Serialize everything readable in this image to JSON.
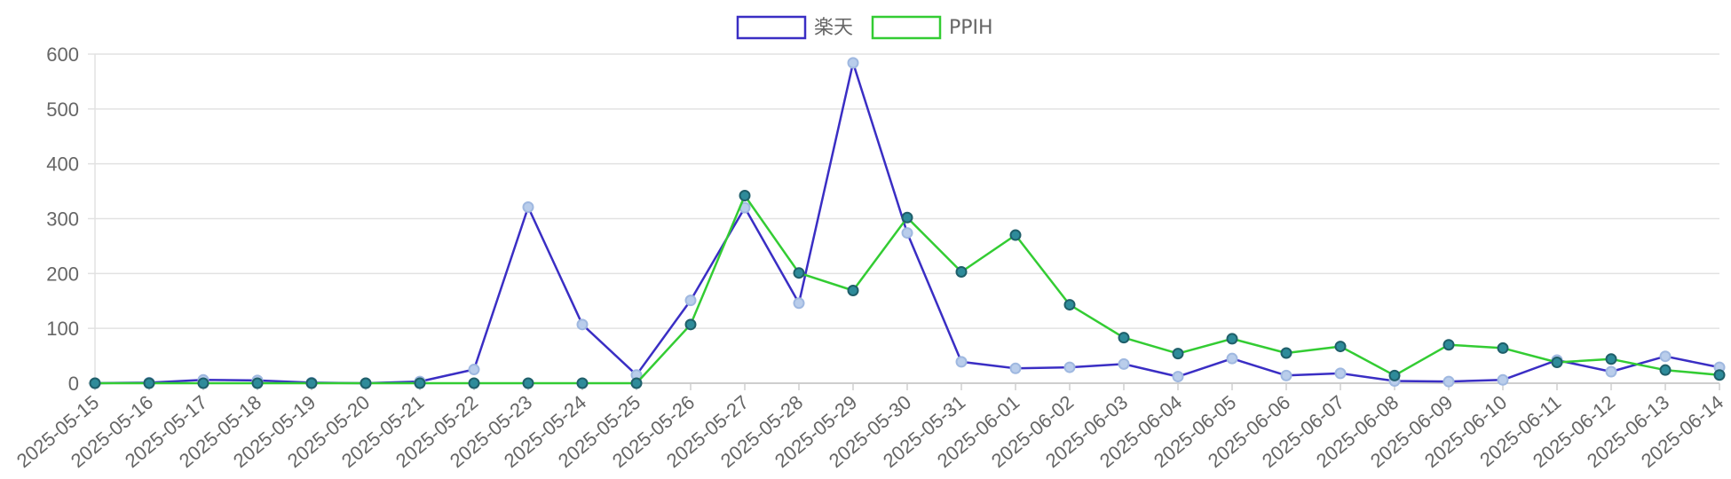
{
  "chart_data": {
    "type": "line",
    "x": [
      "2025-05-15",
      "2025-05-16",
      "2025-05-17",
      "2025-05-18",
      "2025-05-19",
      "2025-05-20",
      "2025-05-21",
      "2025-05-22",
      "2025-05-23",
      "2025-05-24",
      "2025-05-25",
      "2025-05-26",
      "2025-05-27",
      "2025-05-28",
      "2025-05-29",
      "2025-05-30",
      "2025-05-31",
      "2025-06-01",
      "2025-06-02",
      "2025-06-03",
      "2025-06-04",
      "2025-06-05",
      "2025-06-06",
      "2025-06-07",
      "2025-06-08",
      "2025-06-09",
      "2025-06-10",
      "2025-06-11",
      "2025-06-12",
      "2025-06-13",
      "2025-06-14"
    ],
    "series": [
      {
        "name": "楽天",
        "color": "#3a2ec4",
        "point_fill": "#b9cdeb",
        "values": [
          0,
          1,
          6,
          5,
          1,
          0,
          3,
          25,
          321,
          107,
          15,
          151,
          320,
          146,
          584,
          274,
          39,
          27,
          29,
          35,
          12,
          45,
          14,
          18,
          4,
          3,
          6,
          42,
          21,
          49,
          29
        ]
      },
      {
        "name": "PPIH",
        "color": "#33cc33",
        "point_fill": "#2e8b9a",
        "values": [
          0,
          0,
          0,
          0,
          0,
          0,
          0,
          0,
          0,
          0,
          0,
          107,
          342,
          201,
          169,
          302,
          203,
          270,
          143,
          83,
          54,
          81,
          55,
          67,
          14,
          70,
          64,
          38,
          44,
          24,
          15
        ]
      }
    ],
    "y_ticks": [
      0,
      100,
      200,
      300,
      400,
      500,
      600
    ],
    "ylim": [
      0,
      600
    ],
    "grid": true,
    "legend_position": "top-center",
    "title": "",
    "xlabel": "",
    "ylabel": ""
  }
}
